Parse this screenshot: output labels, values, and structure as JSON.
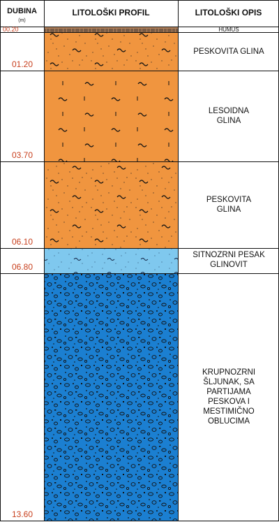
{
  "header": {
    "depth_title": "DUBINA",
    "depth_unit": "(m)",
    "profile_title": "LITOLOŠKI PROFIL",
    "description_title": "LITOLOŠKI OPIS"
  },
  "layers": [
    {
      "depth": "00.20",
      "description": "HUMUS"
    },
    {
      "depth": "01.20",
      "description": "PESKOVITA GLINA"
    },
    {
      "depth": "03.70",
      "description": "LESOIDNA\nGLINA"
    },
    {
      "depth": "06.10",
      "description": "PESKOVITA\nGLINA"
    },
    {
      "depth": "06.80",
      "description": "SITNOZRNI PESAK\nGLINOVIT"
    },
    {
      "depth": "13.60",
      "description": "KRUPNOZRNI\nŠLJUNAK, SA\nPARTIJAMA\nPESKOVA I\nMESTIMIČNO\nOBLUCIMA"
    }
  ]
}
